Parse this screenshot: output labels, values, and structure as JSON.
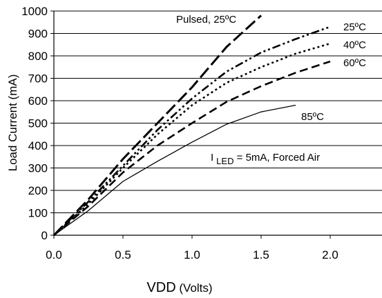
{
  "chart_data": {
    "type": "line",
    "title": "",
    "xlabel": {
      "main": "V",
      "sub": "DD",
      "rest": " (Volts)"
    },
    "ylabel": "Load Current (mA)",
    "xlim": [
      0,
      2.35
    ],
    "ylim": [
      0,
      1000
    ],
    "xticks": [
      "0.0",
      "0.5",
      "1.0",
      "1.5",
      "2.0"
    ],
    "xtick_values": [
      0,
      0.5,
      1.0,
      1.5,
      2.0
    ],
    "yticks": [
      "0",
      "100",
      "200",
      "300",
      "400",
      "500",
      "600",
      "700",
      "800",
      "900",
      "1000"
    ],
    "ytick_values": [
      0,
      100,
      200,
      300,
      400,
      500,
      600,
      700,
      800,
      900,
      1000
    ],
    "grid": "horizontal",
    "series": [
      {
        "name": "Pulsed, 25ºC",
        "style": "long-dash",
        "x": [
          0,
          0.25,
          0.5,
          0.75,
          1.0,
          1.25,
          1.5
        ],
        "y": [
          0,
          160,
          340,
          500,
          660,
          840,
          980
        ]
      },
      {
        "name": "25ºC",
        "style": "dash-dot-dot",
        "x": [
          0,
          0.25,
          0.5,
          0.75,
          1.0,
          1.25,
          1.5,
          1.75,
          2.0
        ],
        "y": [
          0,
          150,
          310,
          470,
          610,
          730,
          815,
          875,
          930
        ]
      },
      {
        "name": "40ºC",
        "style": "dotted",
        "x": [
          0,
          0.25,
          0.5,
          0.75,
          1.0,
          1.25,
          1.5,
          1.75,
          2.0
        ],
        "y": [
          0,
          140,
          300,
          450,
          580,
          680,
          750,
          810,
          855
        ]
      },
      {
        "name": "60ºC",
        "style": "dashed",
        "x": [
          0,
          0.25,
          0.5,
          0.75,
          1.0,
          1.25,
          1.5,
          1.75,
          2.0
        ],
        "y": [
          0,
          130,
          280,
          400,
          500,
          595,
          665,
          725,
          775
        ]
      },
      {
        "name": "85ºC",
        "style": "solid",
        "x": [
          0,
          0.25,
          0.5,
          0.75,
          1.0,
          1.25,
          1.5,
          1.75
        ],
        "y": [
          0,
          110,
          240,
          330,
          415,
          495,
          550,
          580
        ]
      }
    ],
    "annotations": [
      {
        "main": "I",
        "sub": "LED",
        "rest": " = 5mA, Forced Air"
      }
    ]
  }
}
